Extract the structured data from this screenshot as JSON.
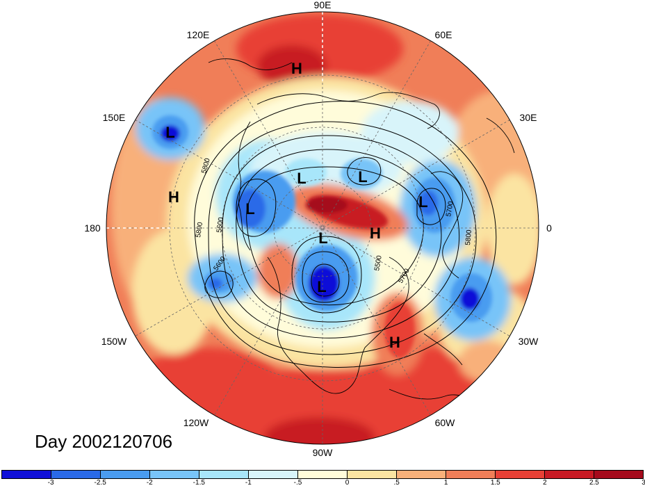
{
  "map": {
    "lon_labels": {
      "north": "90E",
      "ne1": "60E",
      "ne2": "30E",
      "east": "0",
      "se1": "30W",
      "se2": "60W",
      "south": "90W",
      "sw1": "120W",
      "sw2": "150W",
      "west": "180",
      "nw1": "150E",
      "nw2": "120E"
    },
    "pressure_centers": [
      {
        "id": "h-120e",
        "label": "H",
        "kind": "high"
      },
      {
        "id": "l-150e",
        "label": "L",
        "kind": "low"
      },
      {
        "id": "h-180",
        "label": "H",
        "kind": "high"
      },
      {
        "id": "l-siberia",
        "label": "L",
        "kind": "low"
      },
      {
        "id": "l-north",
        "label": "L",
        "kind": "low"
      },
      {
        "id": "l-arctic",
        "label": "L",
        "kind": "low"
      },
      {
        "id": "l-europe",
        "label": "L",
        "kind": "low"
      },
      {
        "id": "h-greenland",
        "label": "H",
        "kind": "high"
      },
      {
        "id": "l-pole",
        "label": "L",
        "kind": "low"
      },
      {
        "id": "l-hudson",
        "label": "L",
        "kind": "low"
      },
      {
        "id": "h-atlantic",
        "label": "H",
        "kind": "high"
      }
    ],
    "contour_labels": {
      "c1": "5800",
      "c2": "5600",
      "c3": "5800",
      "c4": "5600",
      "c5": "5700",
      "c6": "5800",
      "c7": "5500",
      "c8": "5700"
    }
  },
  "day_label": "Day 2002120706",
  "colorbar": {
    "colors": [
      "#1010d8",
      "#2a6ae8",
      "#4a9cf0",
      "#78c4f8",
      "#a8e6fa",
      "#d8f4fa",
      "#fffcda",
      "#fbe4a2",
      "#f8b07a",
      "#f07e58",
      "#e84036",
      "#c81a24",
      "#a50a1c"
    ],
    "ticks": [
      "-3",
      "-2.5",
      "-2",
      "-1.5",
      "-1",
      "-.5",
      "0",
      ".5",
      "1",
      "1.5",
      "2",
      "2.5",
      "3"
    ]
  }
}
